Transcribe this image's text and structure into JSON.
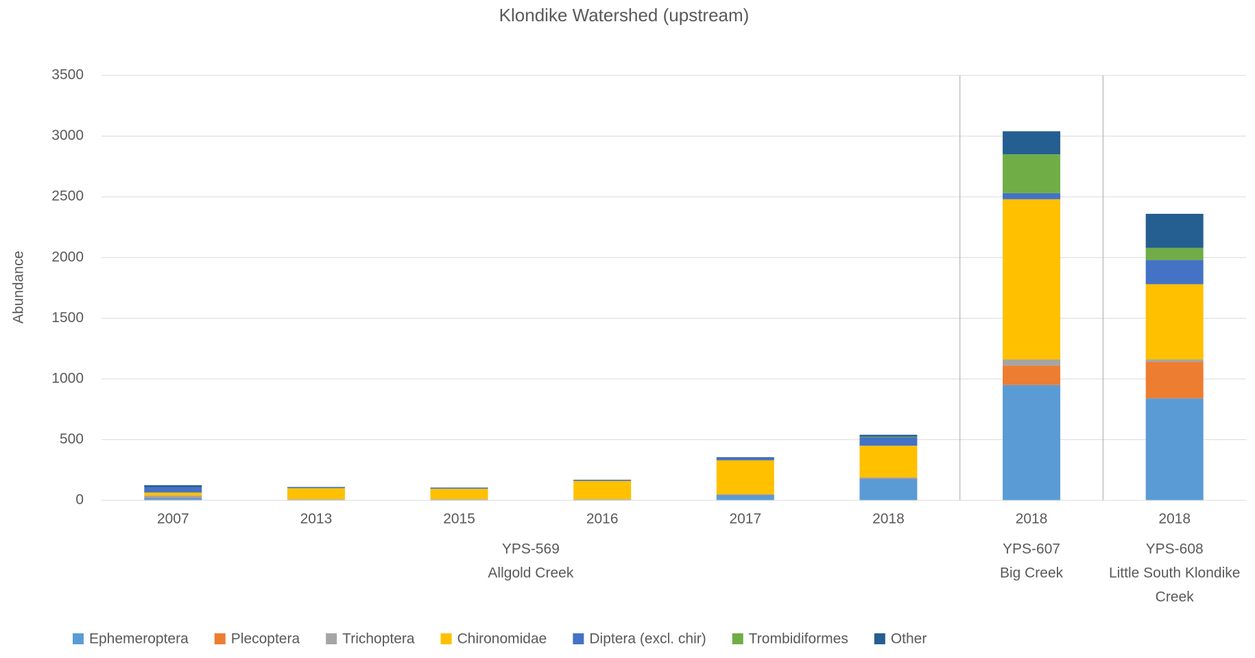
{
  "chart_data": {
    "type": "bar",
    "stacked": true,
    "title": "Klondike Watershed (upstream)",
    "y_label": "Abundance",
    "groups": [
      {
        "label": [
          "YPS-569",
          "Allgold Creek"
        ],
        "categories": [
          "2007",
          "2013",
          "2015",
          "2016",
          "2017",
          "2018"
        ]
      },
      {
        "label": [
          "YPS-607",
          "Big Creek"
        ],
        "categories": [
          "2018"
        ]
      },
      {
        "label": [
          "YPS-608",
          "Little South Klondike",
          "Creek"
        ],
        "categories": [
          "2018"
        ]
      }
    ],
    "series": [
      {
        "name": "Ephemeroptera",
        "color": "#5b9bd5",
        "values": [
          20,
          5,
          5,
          5,
          45,
          180,
          950,
          840
        ]
      },
      {
        "name": "Plecoptera",
        "color": "#ed7d31",
        "values": [
          5,
          2,
          2,
          2,
          3,
          5,
          160,
          300
        ]
      },
      {
        "name": "Trichoptera",
        "color": "#a5a5a5",
        "values": [
          15,
          3,
          3,
          3,
          2,
          5,
          50,
          20
        ]
      },
      {
        "name": "Chironomidae",
        "color": "#ffc000",
        "values": [
          25,
          90,
          85,
          150,
          280,
          260,
          1320,
          620
        ]
      },
      {
        "name": "Diptera (excl. chir)",
        "color": "#4472c4",
        "values": [
          45,
          5,
          5,
          5,
          20,
          70,
          50,
          200
        ]
      },
      {
        "name": "Trombidiformes",
        "color": "#70ad47",
        "values": [
          0,
          0,
          0,
          0,
          0,
          5,
          320,
          100
        ]
      },
      {
        "name": "Other",
        "color": "#255e91",
        "values": [
          15,
          5,
          5,
          5,
          5,
          15,
          190,
          280
        ]
      }
    ],
    "ylim": [
      0,
      3500
    ],
    "yticks": [
      0,
      500,
      1000,
      1500,
      2000,
      2500,
      3000,
      3500
    ],
    "grid": true,
    "legend": "bottom"
  }
}
